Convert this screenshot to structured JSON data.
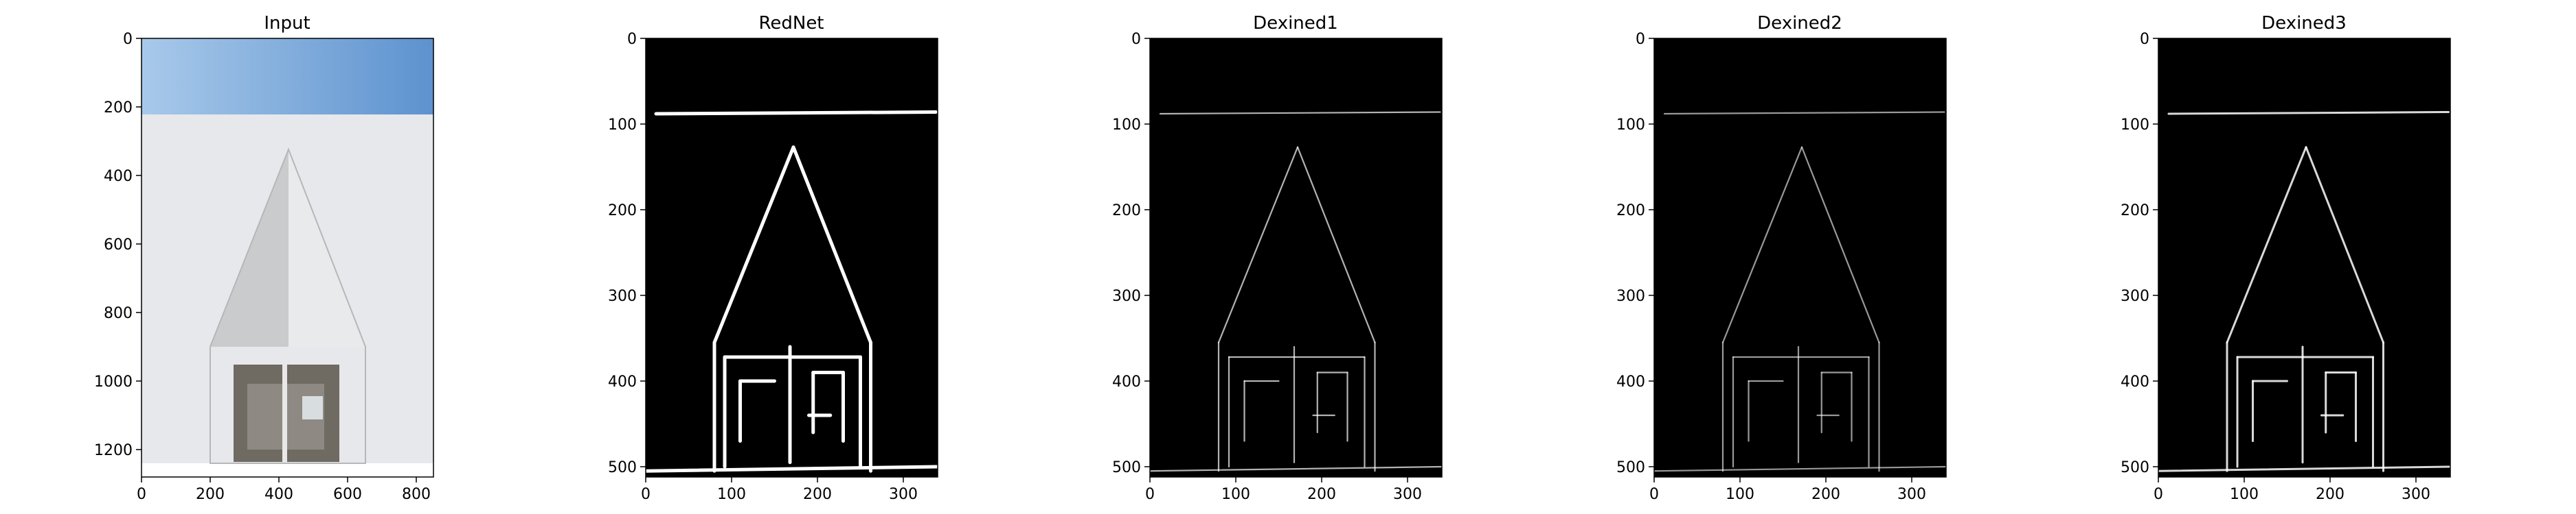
{
  "chart_data": [
    {
      "type": "image",
      "title": "Input",
      "xlim": [
        0,
        850
      ],
      "ylim": [
        1280,
        0
      ],
      "xticks": [
        0,
        200,
        400,
        600,
        800
      ],
      "yticks": [
        0,
        200,
        400,
        600,
        800,
        1000,
        1200
      ],
      "xtick_labels": [
        "0",
        "200",
        "400",
        "600",
        "800"
      ],
      "ytick_labels": [
        "0",
        "200",
        "400",
        "600",
        "800",
        "1000",
        "1200"
      ],
      "content": "photo"
    },
    {
      "type": "image",
      "title": "RedNet",
      "xlim": [
        0,
        340
      ],
      "ylim": [
        512,
        0
      ],
      "xticks": [
        0,
        100,
        200,
        300
      ],
      "yticks": [
        0,
        100,
        200,
        300,
        400,
        500
      ],
      "xtick_labels": [
        "0",
        "100",
        "200",
        "300"
      ],
      "ytick_labels": [
        "0",
        "100",
        "200",
        "300",
        "400",
        "500"
      ],
      "content": "edges",
      "edge_style": {
        "width": 5,
        "opacity": 1.0
      }
    },
    {
      "type": "image",
      "title": "Dexined1",
      "xlim": [
        0,
        340
      ],
      "ylim": [
        512,
        0
      ],
      "xticks": [
        0,
        100,
        200,
        300
      ],
      "yticks": [
        0,
        100,
        200,
        300,
        400,
        500
      ],
      "xtick_labels": [
        "0",
        "100",
        "200",
        "300"
      ],
      "ytick_labels": [
        "0",
        "100",
        "200",
        "300",
        "400",
        "500"
      ],
      "content": "edges",
      "edge_style": {
        "width": 2.2,
        "opacity": 0.7
      }
    },
    {
      "type": "image",
      "title": "Dexined2",
      "xlim": [
        0,
        340
      ],
      "ylim": [
        512,
        0
      ],
      "xticks": [
        0,
        100,
        200,
        300
      ],
      "yticks": [
        0,
        100,
        200,
        300,
        400,
        500
      ],
      "xtick_labels": [
        "0",
        "100",
        "200",
        "300"
      ],
      "ytick_labels": [
        "0",
        "100",
        "200",
        "300",
        "400",
        "500"
      ],
      "content": "edges",
      "edge_style": {
        "width": 2.2,
        "opacity": 0.6
      }
    },
    {
      "type": "image",
      "title": "Dexined3",
      "xlim": [
        0,
        340
      ],
      "ylim": [
        512,
        0
      ],
      "xticks": [
        0,
        100,
        200,
        300
      ],
      "yticks": [
        0,
        100,
        200,
        300,
        400,
        500
      ],
      "xtick_labels": [
        "0",
        "100",
        "200",
        "300"
      ],
      "ytick_labels": [
        "0",
        "100",
        "200",
        "300",
        "400",
        "500"
      ],
      "content": "edges",
      "edge_style": {
        "width": 3,
        "opacity": 0.85
      }
    }
  ],
  "colors": {
    "sky_top": "#a8c9ea",
    "sky_bottom": "#5d92cf",
    "wall": "#e6e8eb",
    "roof_left": "#c9cbcd",
    "roof_right": "#e9eaeb",
    "doorway": "#6f6a62",
    "edge_bg": "#000000",
    "edge_line": "#ffffff"
  }
}
